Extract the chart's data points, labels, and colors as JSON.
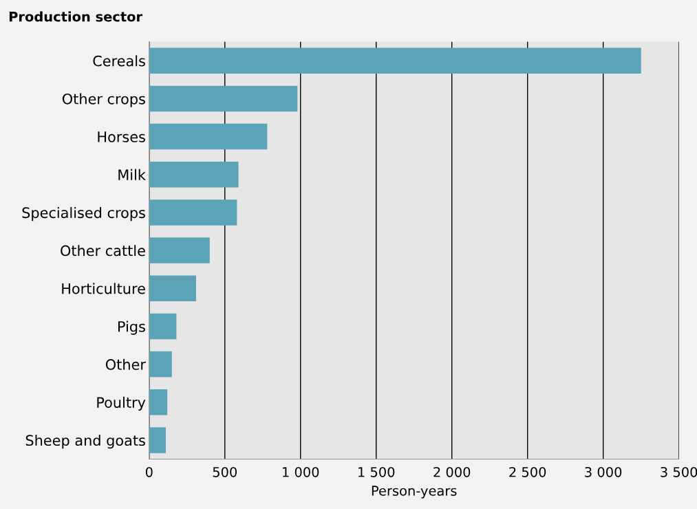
{
  "chart_data": {
    "type": "bar",
    "orientation": "horizontal",
    "title": "Production sector",
    "xlabel": "Person-years",
    "categories": [
      "Cereals",
      "Other crops",
      "Horses",
      "Milk",
      "Specialised crops",
      "Other cattle",
      "Horticulture",
      "Pigs",
      "Other",
      "Poultry",
      "Sheep and goats"
    ],
    "values": [
      3250,
      980,
      780,
      590,
      580,
      400,
      310,
      180,
      150,
      120,
      110
    ],
    "color": "#5ba3b6",
    "xlim": [
      0,
      3500
    ],
    "xticks": [
      0,
      500,
      {
        "value": 1000,
        "label": "1 000"
      },
      {
        "value": 1500,
        "label": "1 500"
      },
      {
        "value": 2000,
        "label": "2 000"
      },
      {
        "value": 2500,
        "label": "2 500"
      },
      {
        "value": 3000,
        "label": "3 000"
      },
      {
        "value": 3500,
        "label": "3 500"
      }
    ],
    "grid": "x"
  }
}
